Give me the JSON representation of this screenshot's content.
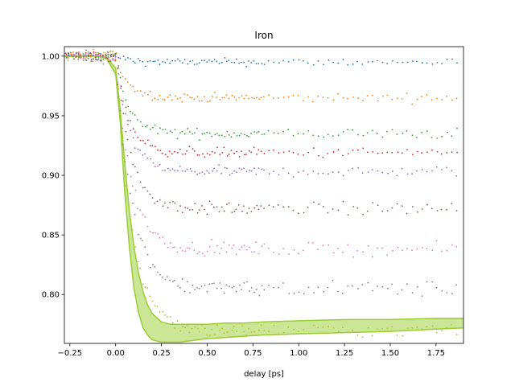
{
  "chart_data": {
    "type": "scatter",
    "title": "Iron",
    "xlabel": "delay [ps]",
    "ylabel": "",
    "xlim": [
      -0.28,
      1.9
    ],
    "ylim": [
      0.759,
      1.008
    ],
    "xticks": [
      "−0.25",
      "0.00",
      "0.25",
      "0.50",
      "0.75",
      "1.00",
      "1.25",
      "1.50",
      "1.75"
    ],
    "xtick_values": [
      -0.25,
      0.0,
      0.25,
      0.5,
      0.75,
      1.0,
      1.25,
      1.5,
      1.75
    ],
    "yticks": [
      "0.80",
      "0.85",
      "0.90",
      "0.95",
      "1.00"
    ],
    "ytick_values": [
      0.8,
      0.85,
      0.9,
      0.95,
      1.0
    ],
    "grid": false,
    "series": [
      {
        "color": "#1f77b4",
        "baseline": 1.0,
        "plateau": 0.995,
        "tau": 0.08,
        "noise": 0.003
      },
      {
        "color": "#ff7f0e",
        "baseline": 1.0,
        "plateau": 0.965,
        "tau": 0.07,
        "noise": 0.0035
      },
      {
        "color": "#2ca02c",
        "baseline": 1.0,
        "plateau": 0.935,
        "tau": 0.07,
        "noise": 0.004
      },
      {
        "color": "#d62728",
        "baseline": 1.0,
        "plateau": 0.919,
        "tau": 0.07,
        "noise": 0.004
      },
      {
        "color": "#9467bd",
        "baseline": 1.0,
        "plateau": 0.903,
        "tau": 0.075,
        "noise": 0.004
      },
      {
        "color": "#8c564b",
        "baseline": 1.0,
        "plateau": 0.872,
        "tau": 0.08,
        "noise": 0.005
      },
      {
        "color": "#e377c2",
        "baseline": 1.0,
        "plateau": 0.838,
        "tau": 0.085,
        "noise": 0.005
      },
      {
        "color": "#7f7f7f",
        "baseline": 1.0,
        "plateau": 0.805,
        "tau": 0.09,
        "noise": 0.006
      },
      {
        "color": "#bcbd22",
        "baseline": 1.0,
        "plateau": 0.77,
        "tau": 0.09,
        "noise": 0.006
      }
    ],
    "fit_band": {
      "color": "#9acd32",
      "x": [
        -0.28,
        -0.2,
        -0.1,
        -0.05,
        0.0,
        0.025,
        0.05,
        0.075,
        0.1,
        0.125,
        0.15,
        0.175,
        0.2,
        0.25,
        0.3,
        0.35,
        0.4,
        0.45,
        0.5,
        0.6,
        0.7,
        0.8,
        1.0,
        1.25,
        1.5,
        1.75,
        1.9
      ],
      "upper": [
        1.0,
        1.0,
        1.0,
        0.999,
        0.99,
        0.955,
        0.91,
        0.87,
        0.84,
        0.818,
        0.802,
        0.791,
        0.784,
        0.777,
        0.775,
        0.775,
        0.775,
        0.775,
        0.775,
        0.776,
        0.776,
        0.777,
        0.778,
        0.779,
        0.779,
        0.78,
        0.78
      ],
      "lower": [
        1.0,
        1.0,
        1.0,
        0.998,
        0.985,
        0.945,
        0.885,
        0.84,
        0.805,
        0.785,
        0.772,
        0.766,
        0.762,
        0.76,
        0.76,
        0.76,
        0.761,
        0.762,
        0.763,
        0.764,
        0.765,
        0.766,
        0.767,
        0.768,
        0.769,
        0.771,
        0.772
      ]
    }
  }
}
